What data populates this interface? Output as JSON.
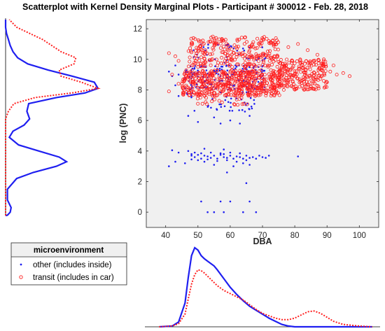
{
  "chart_data": {
    "type": "scatter",
    "title": "Scatterplot with Kernel Density Marginal Plots - Participant # 300012 - Feb. 28, 2018",
    "xlabel": "DBA",
    "ylabel": "log (PNC)",
    "xlim": [
      34,
      106
    ],
    "ylim": [
      -1,
      12.6
    ],
    "xticks": [
      40,
      50,
      60,
      70,
      80,
      90,
      100
    ],
    "yticks": [
      0,
      2,
      4,
      6,
      8,
      10,
      12
    ],
    "grid": false,
    "legend": {
      "title": "microenvironment",
      "placement": "bottom-left",
      "entries": [
        "other (includes inside)",
        "transit (includes in car)"
      ]
    },
    "colors": {
      "other": "#1f1ff0",
      "transit": "#ff1e1e",
      "plot_bg": "#f0f0f0"
    },
    "series": [
      {
        "name": "other (includes inside)",
        "marker": "dot",
        "clusters": [
          {
            "x": [
              46,
              71
            ],
            "y": [
              8.0,
              9.6
            ],
            "n": 160
          },
          {
            "x": [
              47,
              71
            ],
            "y": [
              9.6,
              11.0
            ],
            "n": 40
          },
          {
            "x": [
              46,
              68
            ],
            "y": [
              6.5,
              8.0
            ],
            "n": 45
          }
        ],
        "points": [
          [
            41,
            9.2
          ],
          [
            42,
            8.9
          ],
          [
            43,
            9.6
          ],
          [
            44,
            9.0
          ],
          [
            44,
            7.6
          ],
          [
            43,
            8.3
          ],
          [
            47,
            6.3
          ],
          [
            55,
            6.2
          ],
          [
            50,
            5.9
          ],
          [
            57,
            5.8
          ],
          [
            60,
            6.0
          ],
          [
            63,
            5.8
          ],
          [
            66,
            6.3
          ],
          [
            42,
            4.05
          ],
          [
            44,
            3.9
          ],
          [
            47,
            4.0
          ],
          [
            52,
            4.15
          ],
          [
            58,
            4.1
          ],
          [
            41,
            3.0
          ],
          [
            43,
            3.3
          ],
          [
            48,
            3.7
          ],
          [
            49,
            3.6
          ],
          [
            50,
            3.75
          ],
          [
            51,
            3.5
          ],
          [
            52,
            3.7
          ],
          [
            53,
            3.65
          ],
          [
            54,
            3.55
          ],
          [
            55,
            3.7
          ],
          [
            56,
            3.5
          ],
          [
            57,
            3.75
          ],
          [
            58,
            3.6
          ],
          [
            59,
            3.55
          ],
          [
            60,
            3.7
          ],
          [
            61,
            3.5
          ],
          [
            62,
            3.65
          ],
          [
            63,
            3.6
          ],
          [
            64,
            3.5
          ],
          [
            65,
            3.7
          ],
          [
            66,
            3.55
          ],
          [
            67,
            3.6
          ],
          [
            68,
            3.5
          ],
          [
            69,
            3.7
          ],
          [
            70,
            3.6
          ],
          [
            71,
            3.55
          ],
          [
            72,
            3.7
          ],
          [
            48,
            3.45
          ],
          [
            50,
            3.4
          ],
          [
            53,
            3.45
          ],
          [
            56,
            3.35
          ],
          [
            59,
            3.4
          ],
          [
            62,
            3.3
          ],
          [
            65,
            3.4
          ],
          [
            49,
            3.9
          ],
          [
            51,
            3.85
          ],
          [
            54,
            3.9
          ],
          [
            57,
            3.85
          ],
          [
            60,
            3.9
          ],
          [
            63,
            3.85
          ],
          [
            46,
            3.2
          ],
          [
            55,
            3.1
          ],
          [
            61,
            3.0
          ],
          [
            64,
            3.2
          ],
          [
            48,
            3.8
          ],
          [
            52,
            3.3
          ],
          [
            58,
            3.8
          ],
          [
            66,
            3.1
          ],
          [
            81,
            3.65
          ],
          [
            59,
            2.6
          ],
          [
            65,
            1.9
          ],
          [
            51,
            0.7
          ],
          [
            57,
            0.7
          ],
          [
            60,
            0.7
          ],
          [
            66,
            0.7
          ],
          [
            53,
            0.0
          ],
          [
            55,
            0.0
          ],
          [
            58,
            0.0
          ],
          [
            64,
            0.0
          ],
          [
            68,
            0.0
          ]
        ]
      },
      {
        "name": "transit (includes in car)",
        "marker": "circle",
        "clusters": [
          {
            "x": [
              45,
              76
            ],
            "y": [
              7.6,
              9.3
            ],
            "n": 520
          },
          {
            "x": [
              47,
              75
            ],
            "y": [
              9.5,
              11.5
            ],
            "n": 260
          },
          {
            "x": [
              75,
              90
            ],
            "y": [
              8.0,
              10.0
            ],
            "n": 220
          },
          {
            "x": [
              48,
              66
            ],
            "y": [
              7.0,
              7.8
            ],
            "n": 25
          }
        ],
        "points": [
          [
            41,
            10.4
          ],
          [
            43,
            10.2
          ],
          [
            44,
            9.9
          ],
          [
            42,
            9.0
          ],
          [
            44,
            8.4
          ],
          [
            41,
            7.9
          ],
          [
            91,
            9.2
          ],
          [
            93,
            9.0
          ],
          [
            95,
            9.1
          ],
          [
            97,
            8.9
          ],
          [
            92,
            9.6
          ],
          [
            90,
            8.5
          ],
          [
            87,
            10.3
          ],
          [
            89,
            10.0
          ],
          [
            84,
            10.6
          ],
          [
            81,
            11.0
          ],
          [
            78,
            10.8
          ],
          [
            72,
            11.2
          ]
        ]
      }
    ],
    "marginal_x": {
      "type": "line",
      "x": [
        38,
        42,
        44,
        46,
        47,
        48,
        49,
        50,
        51,
        52,
        53,
        54,
        55,
        56,
        58,
        60,
        62,
        64,
        66,
        68,
        70,
        72,
        74,
        76,
        78,
        80,
        82,
        84,
        86,
        88,
        90,
        92,
        95,
        100,
        104
      ],
      "series": [
        {
          "name": "other (includes inside)",
          "values": [
            0,
            0.01,
            0.06,
            0.3,
            0.62,
            0.9,
            1.0,
            0.97,
            0.9,
            0.86,
            0.83,
            0.8,
            0.77,
            0.72,
            0.61,
            0.5,
            0.41,
            0.33,
            0.26,
            0.21,
            0.16,
            0.11,
            0.07,
            0.03,
            0.01,
            0,
            0,
            0,
            0,
            0,
            0,
            0,
            0,
            0,
            0
          ]
        },
        {
          "name": "transit (includes in car)",
          "values": [
            0,
            0.01,
            0.04,
            0.16,
            0.35,
            0.54,
            0.66,
            0.72,
            0.71,
            0.68,
            0.64,
            0.6,
            0.56,
            0.52,
            0.46,
            0.42,
            0.38,
            0.34,
            0.28,
            0.22,
            0.17,
            0.14,
            0.11,
            0.09,
            0.09,
            0.11,
            0.15,
            0.19,
            0.2,
            0.17,
            0.12,
            0.07,
            0.03,
            0.01,
            0
          ]
        }
      ]
    },
    "marginal_y": {
      "type": "line",
      "y": [
        -1,
        -0.2,
        0,
        0.3,
        0.8,
        1.5,
        2.2,
        2.6,
        3.0,
        3.3,
        3.6,
        4.0,
        4.4,
        4.9,
        5.3,
        5.7,
        6.1,
        6.6,
        7.1,
        7.5,
        7.8,
        8.1,
        8.5,
        8.9,
        9.3,
        9.7,
        10.1,
        10.5,
        10.9,
        11.3,
        11.7,
        12.1,
        12.6
      ],
      "series": [
        {
          "name": "other (includes inside)",
          "values": [
            0,
            0.02,
            0.05,
            0.06,
            0.02,
            0.02,
            0.12,
            0.3,
            0.55,
            0.66,
            0.58,
            0.36,
            0.14,
            0.04,
            0.08,
            0.2,
            0.26,
            0.23,
            0.25,
            0.55,
            0.86,
            1.0,
            0.96,
            0.72,
            0.46,
            0.24,
            0.13,
            0.08,
            0.05,
            0.03,
            0.01,
            0,
            0
          ]
        },
        {
          "name": "transit (includes in car)",
          "values": [
            0,
            0,
            0,
            0,
            0,
            0,
            0,
            0,
            0,
            0,
            0,
            0,
            0,
            0,
            0,
            0,
            0,
            0.03,
            0.09,
            0.32,
            0.72,
            1.0,
            0.82,
            0.6,
            0.58,
            0.74,
            0.76,
            0.6,
            0.5,
            0.4,
            0.26,
            0.12,
            0.04
          ]
        }
      ]
    }
  }
}
